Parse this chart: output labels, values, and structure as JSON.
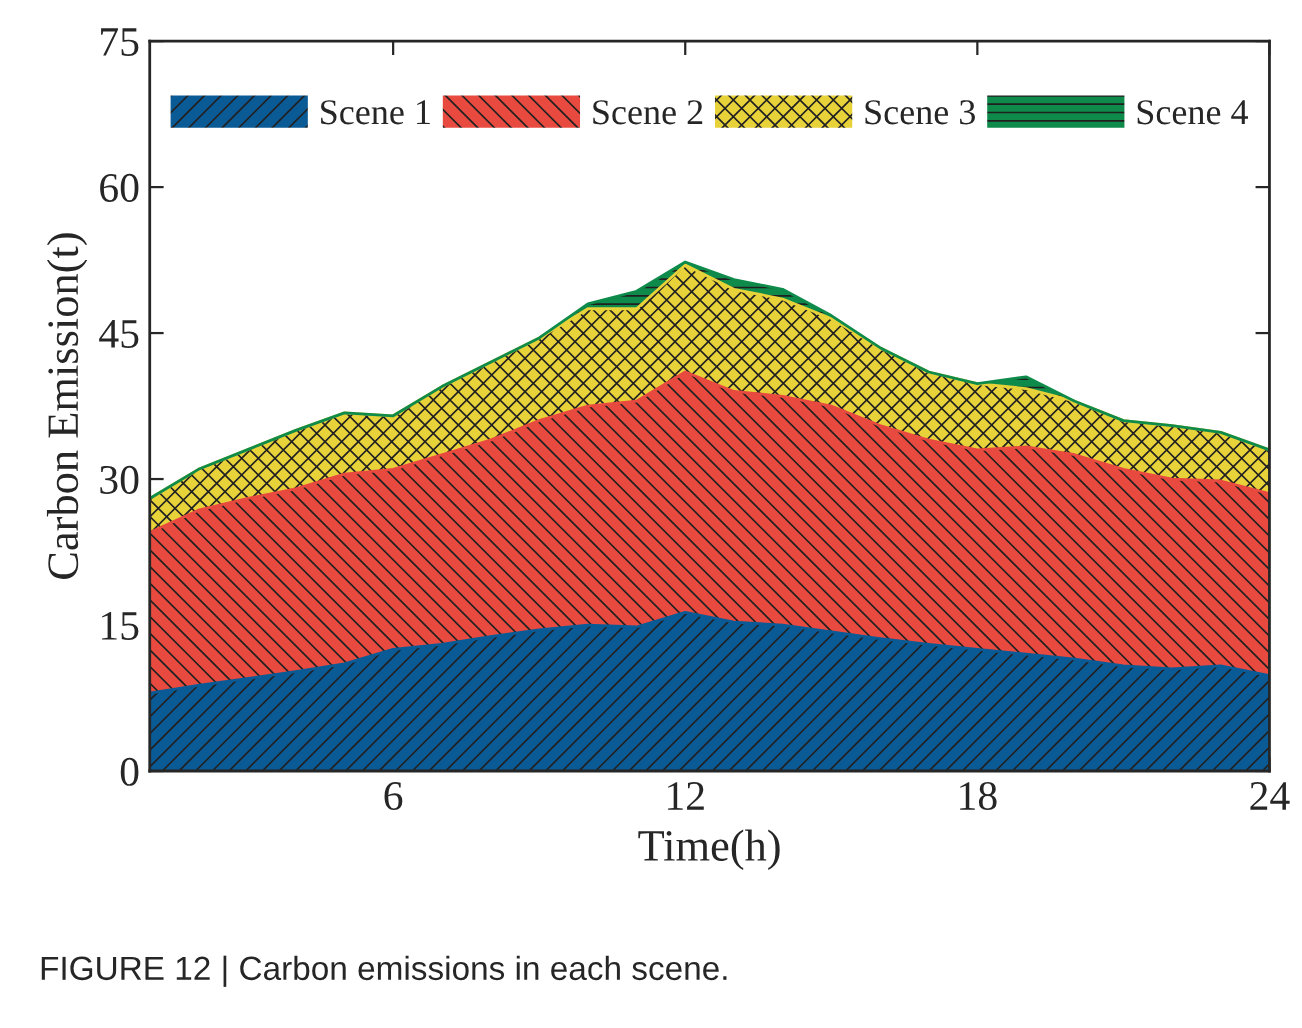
{
  "chart_data": {
    "type": "area",
    "stacked": true,
    "xlabel": "Time(h)",
    "ylabel": "Carbon Emission(t)",
    "x": [
      1,
      2,
      3,
      4,
      5,
      6,
      7,
      8,
      9,
      10,
      11,
      12,
      13,
      14,
      15,
      16,
      17,
      18,
      19,
      20,
      21,
      22,
      23,
      24
    ],
    "series": [
      {
        "name": "Scene 1",
        "color": "#0a5a96",
        "values": [
          8,
          8.8,
          9.5,
          10.2,
          11,
          12.5,
          13,
          13.8,
          14.5,
          15,
          14.8,
          16.3,
          15.3,
          15,
          14.3,
          13.6,
          13,
          12.5,
          12,
          11.5,
          10.8,
          10.5,
          10.8,
          9.8
        ]
      },
      {
        "name": "Scene 2",
        "color": "#e84a3f",
        "values": [
          16.5,
          18,
          18.5,
          18.8,
          19.5,
          18.5,
          19.5,
          20.2,
          21.5,
          22.5,
          23.2,
          24.7,
          23.7,
          23.5,
          23.2,
          21.9,
          21,
          20.5,
          21.3,
          21,
          20.2,
          19.5,
          19,
          18.7
        ]
      },
      {
        "name": "Scene 3",
        "color": "#e8d23a",
        "values": [
          3.5,
          4.2,
          5,
          6,
          6.3,
          5.5,
          7,
          8,
          8.5,
          10,
          9.5,
          11,
          10.5,
          10,
          9,
          8,
          7,
          6.8,
          6,
          5.5,
          5,
          5.5,
          5,
          4.5
        ]
      },
      {
        "name": "Scene 4",
        "color": "#0e8a4a",
        "values": [
          0,
          0,
          0,
          0,
          0,
          0,
          0,
          0,
          0,
          0.5,
          1.8,
          0.3,
          1,
          1,
          0.3,
          0,
          0,
          0,
          1.2,
          0,
          0,
          0,
          0,
          0
        ]
      }
    ],
    "xlim": [
      1,
      24
    ],
    "xticks": [
      6,
      12,
      18,
      24
    ],
    "ylim": [
      0,
      75
    ],
    "yticks": [
      0,
      15,
      30,
      45,
      60,
      75
    ],
    "legend": "top",
    "grid": false,
    "annotations": [
      "FIGURE 12 | Carbon emissions in each scene."
    ]
  }
}
